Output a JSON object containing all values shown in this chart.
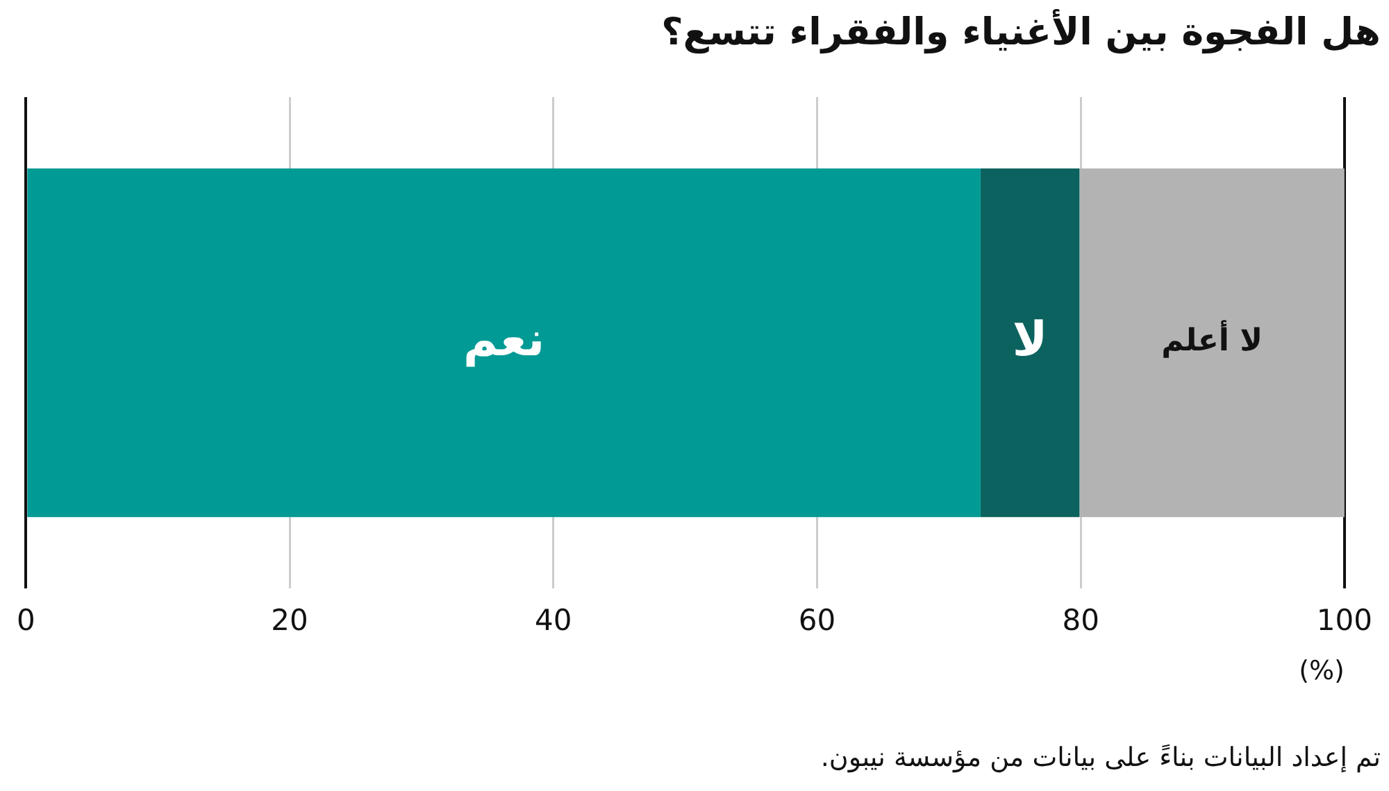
{
  "chart_data": {
    "type": "bar",
    "orientation": "horizontal",
    "stacked": true,
    "title": "هل الفجوة بين الأغنياء والفقراء تتسع؟",
    "xlabel": "(%)",
    "categories": [
      null
    ],
    "series": [
      {
        "name": "نعم",
        "color": "#029a94",
        "values": [
          72.4
        ]
      },
      {
        "name": "لا",
        "color": "#0c625e",
        "values": [
          7.5
        ]
      },
      {
        "name": "لا أعلم",
        "color": "#b3b3b3",
        "values": [
          20.1
        ]
      }
    ],
    "xlim": [
      0,
      100
    ],
    "xticks": [
      0,
      20,
      40,
      60,
      80,
      100
    ],
    "grid": "x",
    "tick_labels": "x",
    "legend": false,
    "annotations": [
      "تم إعداد البيانات بناءً على بيانات من مؤسسة نيبون."
    ]
  }
}
